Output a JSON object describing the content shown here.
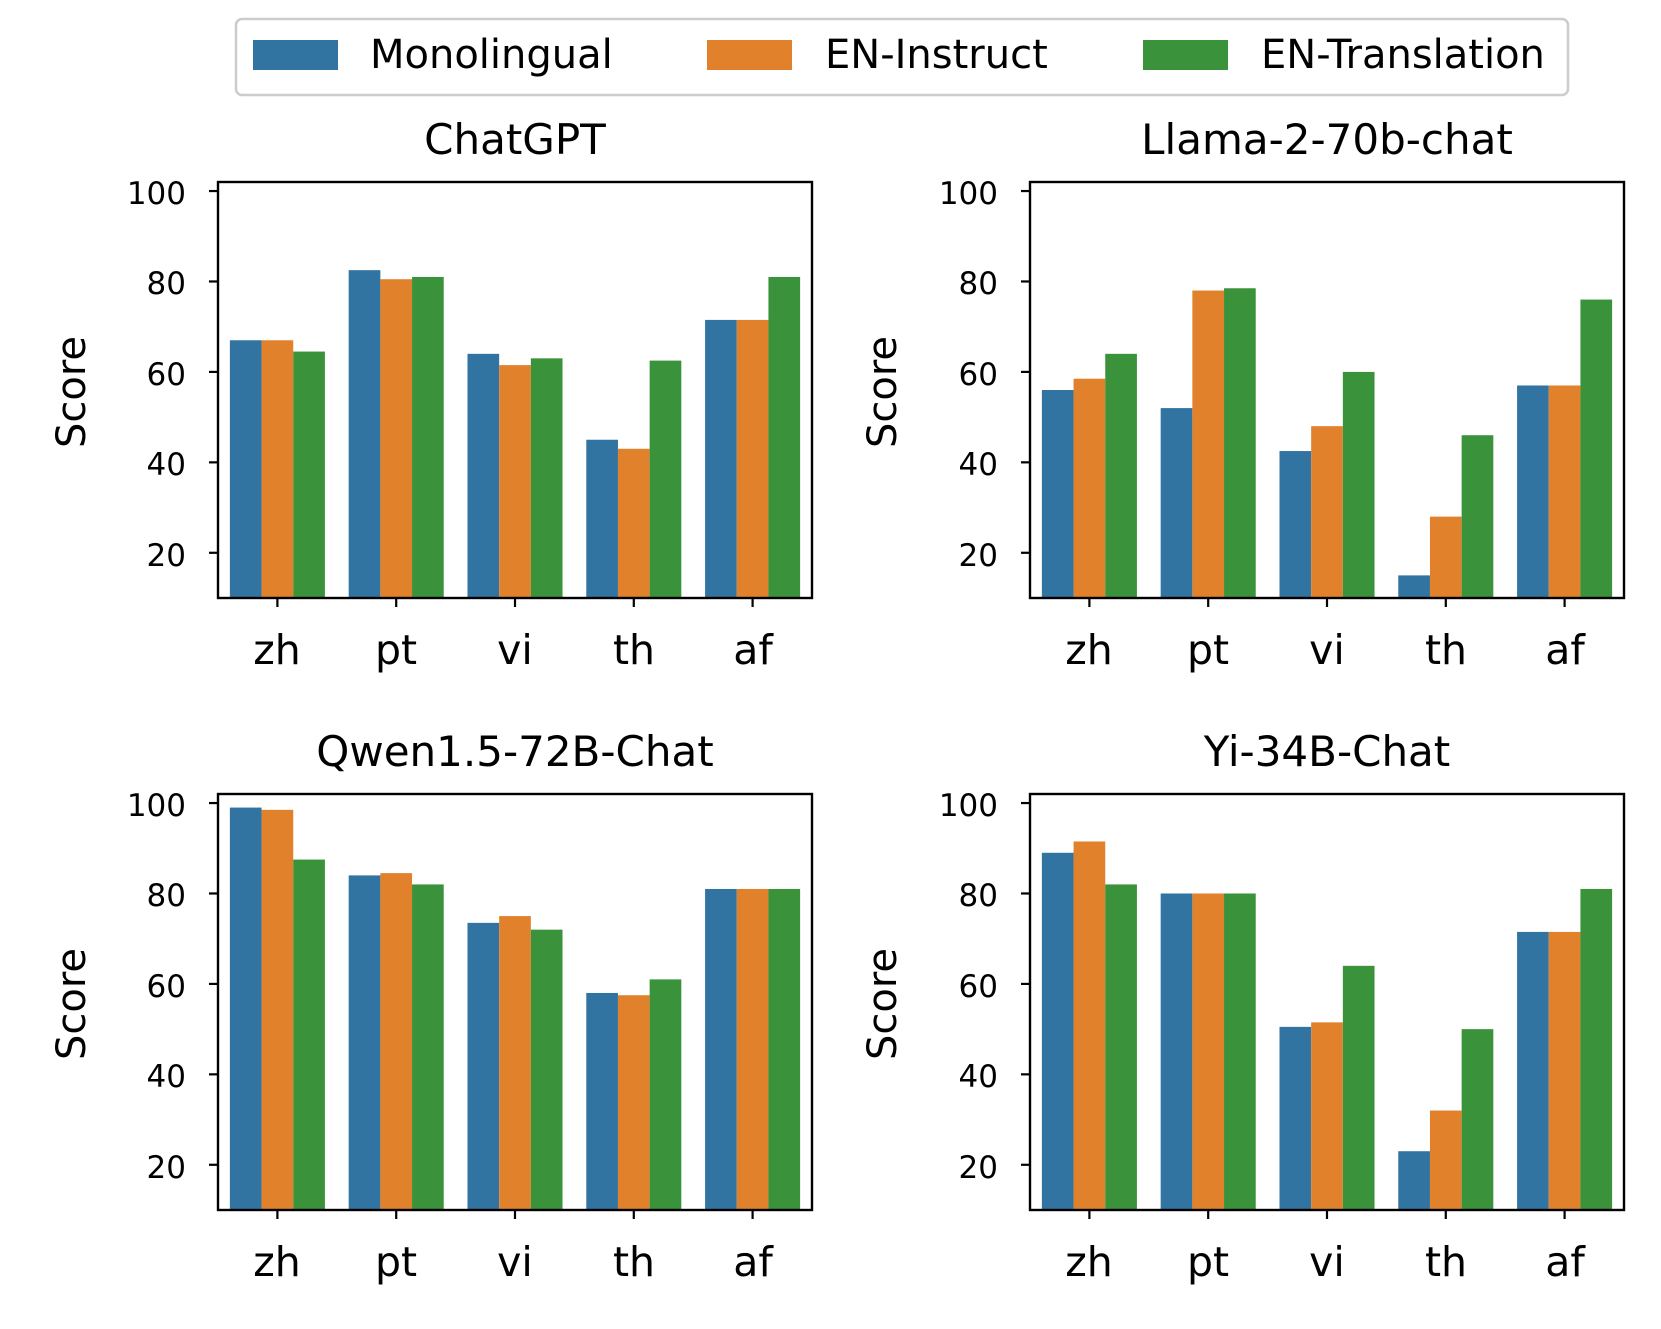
{
  "legend": {
    "entries": [
      {
        "label": "Monolingual",
        "color": "#3274a1"
      },
      {
        "label": "EN-Instruct",
        "color": "#e1812c"
      },
      {
        "label": "EN-Translation",
        "color": "#3a923a"
      }
    ]
  },
  "chart_data": [
    {
      "type": "bar",
      "title": "ChatGPT",
      "xlabel": "",
      "ylabel": "Score",
      "ylim": [
        10,
        102
      ],
      "yticks": [
        20,
        40,
        60,
        80,
        100
      ],
      "categories": [
        "zh",
        "pt",
        "vi",
        "th",
        "af"
      ],
      "series": [
        {
          "name": "Monolingual",
          "values": [
            67,
            82.5,
            64,
            45,
            71.5
          ]
        },
        {
          "name": "EN-Instruct",
          "values": [
            67,
            80.5,
            61.5,
            43,
            71.5
          ]
        },
        {
          "name": "EN-Translation",
          "values": [
            64.5,
            81,
            63,
            62.5,
            81
          ]
        }
      ]
    },
    {
      "type": "bar",
      "title": "Llama-2-70b-chat",
      "xlabel": "",
      "ylabel": "Score",
      "ylim": [
        10,
        102
      ],
      "yticks": [
        20,
        40,
        60,
        80,
        100
      ],
      "categories": [
        "zh",
        "pt",
        "vi",
        "th",
        "af"
      ],
      "series": [
        {
          "name": "Monolingual",
          "values": [
            56,
            52,
            42.5,
            15,
            57
          ]
        },
        {
          "name": "EN-Instruct",
          "values": [
            58.5,
            78,
            48,
            28,
            57
          ]
        },
        {
          "name": "EN-Translation",
          "values": [
            64,
            78.5,
            60,
            46,
            76
          ]
        }
      ]
    },
    {
      "type": "bar",
      "title": "Qwen1.5-72B-Chat",
      "xlabel": "",
      "ylabel": "Score",
      "ylim": [
        10,
        102
      ],
      "yticks": [
        20,
        40,
        60,
        80,
        100
      ],
      "categories": [
        "zh",
        "pt",
        "vi",
        "th",
        "af"
      ],
      "series": [
        {
          "name": "Monolingual",
          "values": [
            99,
            84,
            73.5,
            58,
            81
          ]
        },
        {
          "name": "EN-Instruct",
          "values": [
            98.5,
            84.5,
            75,
            57.5,
            81
          ]
        },
        {
          "name": "EN-Translation",
          "values": [
            87.5,
            82,
            72,
            61,
            81
          ]
        }
      ]
    },
    {
      "type": "bar",
      "title": "Yi-34B-Chat",
      "xlabel": "",
      "ylabel": "Score",
      "ylim": [
        10,
        102
      ],
      "yticks": [
        20,
        40,
        60,
        80,
        100
      ],
      "categories": [
        "zh",
        "pt",
        "vi",
        "th",
        "af"
      ],
      "series": [
        {
          "name": "Monolingual",
          "values": [
            89,
            80,
            50.5,
            23,
            71.5
          ]
        },
        {
          "name": "EN-Instruct",
          "values": [
            91.5,
            80,
            51.5,
            32,
            71.5
          ]
        },
        {
          "name": "EN-Translation",
          "values": [
            82,
            80,
            64,
            50,
            81
          ]
        }
      ]
    }
  ]
}
